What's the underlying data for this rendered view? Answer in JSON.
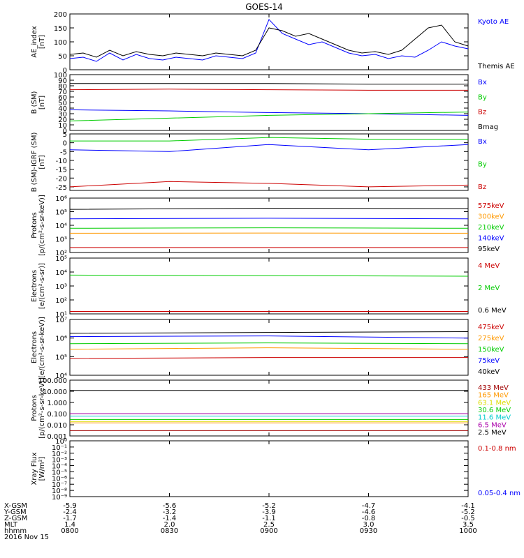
{
  "title": "GOES-14",
  "colors": {
    "black": "#000000",
    "blue": "#0000ff",
    "green": "#00cc00",
    "red": "#cc0000",
    "orange": "#ff9900",
    "cyan": "#00cccc",
    "yellow": "#dddd00",
    "darkred": "#a00000",
    "purple": "#aa00aa"
  },
  "chart_data": [
    {
      "type": "line",
      "ylabel": "AE_index",
      "yunit": "[nT]",
      "ylim": [
        0,
        200
      ],
      "yscale": "linear",
      "yticks": [
        0,
        50,
        100,
        150,
        200
      ],
      "ytick_labels": [
        "0",
        "50",
        "100",
        "150",
        "200"
      ],
      "series": [
        {
          "name": "Kyoto AE",
          "color": "#0000ff",
          "x": [
            0,
            4,
            8,
            12,
            16,
            20,
            24,
            28,
            32,
            36,
            40,
            44,
            48,
            52,
            56,
            60,
            64,
            68,
            72,
            76,
            80,
            84,
            88,
            92,
            96,
            100,
            104,
            108,
            112,
            116,
            120
          ],
          "values": [
            40,
            45,
            30,
            60,
            35,
            55,
            40,
            35,
            45,
            40,
            35,
            50,
            45,
            40,
            60,
            180,
            130,
            110,
            90,
            100,
            80,
            60,
            50,
            55,
            40,
            50,
            45,
            70,
            100,
            85,
            75
          ]
        },
        {
          "name": "Themis AE",
          "color": "#000000",
          "x": [
            0,
            4,
            8,
            12,
            16,
            20,
            24,
            28,
            32,
            36,
            40,
            44,
            48,
            52,
            56,
            60,
            64,
            68,
            72,
            76,
            80,
            84,
            88,
            92,
            96,
            100,
            104,
            108,
            112,
            116,
            120
          ],
          "values": [
            55,
            60,
            45,
            70,
            50,
            65,
            55,
            50,
            60,
            55,
            50,
            60,
            55,
            50,
            70,
            150,
            140,
            120,
            130,
            110,
            90,
            70,
            60,
            65,
            55,
            70,
            110,
            150,
            160,
            100,
            85
          ]
        }
      ]
    },
    {
      "type": "line",
      "ylabel": "B (SM)",
      "yunit": "[nT]",
      "ylim": [
        0,
        100
      ],
      "yscale": "linear",
      "yticks": [
        0,
        10,
        20,
        30,
        40,
        50,
        60,
        70,
        80,
        90,
        100
      ],
      "ytick_labels": [
        "0",
        "10",
        "20",
        "30",
        "40",
        "50",
        "60",
        "70",
        "80",
        "90",
        "100"
      ],
      "series": [
        {
          "name": "Bx",
          "color": "#0000ff",
          "x": [
            0,
            30,
            60,
            90,
            120
          ],
          "values": [
            37,
            35,
            32,
            30,
            27
          ]
        },
        {
          "name": "By",
          "color": "#00cc00",
          "x": [
            0,
            30,
            60,
            90,
            120
          ],
          "values": [
            17,
            22,
            27,
            30,
            33
          ]
        },
        {
          "name": "Bz",
          "color": "#cc0000",
          "x": [
            0,
            30,
            60,
            90,
            120
          ],
          "values": [
            73,
            74,
            73,
            72,
            72
          ]
        },
        {
          "name": "Bmag",
          "color": "#000000",
          "x": [
            0,
            30,
            60,
            90,
            120
          ],
          "values": [
            84,
            84,
            84,
            83,
            83
          ]
        }
      ]
    },
    {
      "type": "line",
      "ylabel": "B (SM)-IGRF (SM)",
      "yunit": "[nT]",
      "ylim": [
        -27,
        5
      ],
      "yscale": "linear",
      "yticks": [
        -25,
        -20,
        -15,
        -10,
        -5,
        0,
        5
      ],
      "ytick_labels": [
        "-25",
        "-20",
        "-15",
        "-10",
        "-5",
        "0",
        "5"
      ],
      "series": [
        {
          "name": "Bx",
          "color": "#0000ff",
          "x": [
            0,
            30,
            60,
            90,
            120
          ],
          "values": [
            -4,
            -5,
            -1,
            -4,
            -1
          ]
        },
        {
          "name": "By",
          "color": "#00cc00",
          "x": [
            0,
            30,
            60,
            90,
            120
          ],
          "values": [
            1,
            1,
            3,
            2,
            2
          ]
        },
        {
          "name": "Bz",
          "color": "#cc0000",
          "x": [
            0,
            30,
            60,
            90,
            120
          ],
          "values": [
            -25,
            -22,
            -23,
            -25,
            -24
          ]
        }
      ]
    },
    {
      "type": "line",
      "ylabel": "Protons",
      "yunit": "[p/(cm²-s-sr-keV)]",
      "ylim": [
        100.0,
        1000000.0
      ],
      "yscale": "log",
      "yticks": [
        100,
        1000,
        10000,
        100000,
        1000000
      ],
      "ytick_labels": [
        "10²",
        "10³",
        "10⁴",
        "10⁵",
        "10⁶"
      ],
      "series": [
        {
          "name": "575keV",
          "color": "#cc0000",
          "x": [
            0,
            60,
            120
          ],
          "values": [
            230,
            230,
            230
          ]
        },
        {
          "name": "300keV",
          "color": "#ff9900",
          "x": [
            0,
            60,
            120
          ],
          "values": [
            2600,
            2700,
            2600
          ]
        },
        {
          "name": "210keV",
          "color": "#00cc00",
          "x": [
            0,
            60,
            120
          ],
          "values": [
            6000,
            6500,
            6000
          ]
        },
        {
          "name": "140keV",
          "color": "#0000ff",
          "x": [
            0,
            60,
            120
          ],
          "values": [
            30000,
            33000,
            30000
          ]
        },
        {
          "name": "95keV",
          "color": "#000000",
          "x": [
            0,
            60,
            120
          ],
          "values": [
            150000,
            180000,
            170000
          ]
        }
      ]
    },
    {
      "type": "line",
      "ylabel": "Electrons",
      "yunit": "[e/(cm²-s-sr)]",
      "ylim": [
        10,
        100000
      ],
      "yscale": "log",
      "yticks": [
        10,
        100,
        1000,
        10000,
        100000
      ],
      "ytick_labels": [
        "10¹",
        "10²",
        "10³",
        "10⁴",
        "10⁵"
      ],
      "series": [
        {
          "name": "4 MeV",
          "color": "#cc0000",
          "x": [
            0,
            60,
            120
          ],
          "values": [
            15,
            15,
            15
          ]
        },
        {
          "name": "2 MeV",
          "color": "#00cc00",
          "x": [
            0,
            60,
            120
          ],
          "values": [
            6000,
            5500,
            5000
          ]
        },
        {
          "name": "0.6 MeV",
          "color": "#000000",
          "x": [
            0,
            60,
            120
          ],
          "values": [
            100000,
            100000,
            100000
          ]
        }
      ]
    },
    {
      "type": "line",
      "ylabel": "Electrons",
      "yunit": "[e/(cm²-s-sr-keV)]",
      "ylim": [
        10000.0,
        10000000.0
      ],
      "yscale": "log",
      "yticks": [
        10000,
        100000,
        1000000,
        10000000
      ],
      "ytick_labels": [
        "10⁴",
        "10⁵",
        "10⁶",
        "10⁷"
      ],
      "series": [
        {
          "name": "475keV",
          "color": "#cc0000",
          "x": [
            0,
            60,
            120
          ],
          "values": [
            80000,
            90000,
            90000
          ]
        },
        {
          "name": "275keV",
          "color": "#ff9900",
          "x": [
            0,
            60,
            120
          ],
          "values": [
            250000,
            300000,
            250000
          ]
        },
        {
          "name": "150keV",
          "color": "#00cc00",
          "x": [
            0,
            60,
            120
          ],
          "values": [
            500000,
            550000,
            500000
          ]
        },
        {
          "name": "75keV",
          "color": "#0000ff",
          "x": [
            0,
            60,
            120
          ],
          "values": [
            1200000,
            1300000,
            1000000
          ]
        },
        {
          "name": "40keV",
          "color": "#000000",
          "x": [
            0,
            60,
            120
          ],
          "values": [
            1800000,
            2000000,
            2200000
          ]
        }
      ]
    },
    {
      "type": "line",
      "ylabel": "Protons",
      "yunit": "[p/(cm²-s-sr-keV)]",
      "ylim": [
        0.001,
        100
      ],
      "yscale": "log",
      "yticks": [
        0.001,
        0.01,
        0.1,
        1,
        10,
        100
      ],
      "ytick_labels": [
        "0.001",
        "0.010",
        "0.100",
        "1.000",
        "10.000",
        "100.000"
      ],
      "series": [
        {
          "name": "433 MeV",
          "color": "#a00000",
          "x": [
            0,
            60,
            120
          ],
          "values": [
            0.003,
            0.003,
            0.003
          ]
        },
        {
          "name": "165 MeV",
          "color": "#ff9900",
          "x": [
            0,
            60,
            120
          ],
          "values": [
            0.015,
            0.015,
            0.015
          ]
        },
        {
          "name": "63.1 MeV",
          "color": "#dddd00",
          "x": [
            0,
            60,
            120
          ],
          "values": [
            0.02,
            0.02,
            0.02
          ]
        },
        {
          "name": "30.6 MeV",
          "color": "#00cc00",
          "x": [
            0,
            60,
            120
          ],
          "values": [
            0.03,
            0.03,
            0.03
          ]
        },
        {
          "name": "11.6 MeV",
          "color": "#00cccc",
          "x": [
            0,
            60,
            120
          ],
          "values": [
            0.06,
            0.06,
            0.06
          ]
        },
        {
          "name": "6.5 MeV",
          "color": "#aa00aa",
          "x": [
            0,
            60,
            120
          ],
          "values": [
            0.1,
            0.1,
            0.1
          ]
        },
        {
          "name": "2.5 MeV",
          "color": "#000000",
          "x": [
            0,
            60,
            120
          ],
          "values": [
            12,
            12,
            12
          ]
        }
      ]
    },
    {
      "type": "line",
      "ylabel": "Xray Flux",
      "yunit": "[W/m²]",
      "ylim": [
        1e-09,
        1
      ],
      "yscale": "log",
      "yticks": [
        1e-09,
        1e-08,
        1e-07,
        1e-06,
        1e-05,
        0.0001,
        0.001,
        0.01,
        0.1,
        1
      ],
      "ytick_labels": [
        "10⁻⁹",
        "10⁻⁸",
        "10⁻⁷",
        "10⁻⁶",
        "10⁻⁵",
        "10⁻⁴",
        "10⁻³",
        "10⁻²",
        "10⁻¹",
        "10⁰"
      ],
      "series": [
        {
          "name": "0.1-0.8 nm",
          "color": "#cc0000",
          "x": [],
          "values": []
        },
        {
          "name": "0.05-0.4 nm",
          "color": "#0000ff",
          "x": [],
          "values": []
        }
      ]
    }
  ],
  "xaxis": {
    "ticks_minutes": [
      0,
      30,
      60,
      90,
      120
    ],
    "rows": [
      {
        "label": "X-GSM",
        "values": [
          "-5.9",
          "-5.6",
          "-5.2",
          "-4.7",
          "-4.1"
        ]
      },
      {
        "label": "Y-GSM",
        "values": [
          "-2.4",
          "-3.2",
          "-3.9",
          "-4.6",
          "-5.2"
        ]
      },
      {
        "label": "Z-GSM",
        "values": [
          "-1.7",
          "-1.4",
          "-1.1",
          "-0.8",
          "-0.5"
        ]
      },
      {
        "label": "MLT",
        "values": [
          "1.4",
          "2.0",
          "2.5",
          "3.0",
          "3.5"
        ]
      },
      {
        "label": "hhmm",
        "values": [
          "0800",
          "0830",
          "0900",
          "0930",
          "1000"
        ]
      }
    ],
    "date": "2016 Nov 15"
  }
}
